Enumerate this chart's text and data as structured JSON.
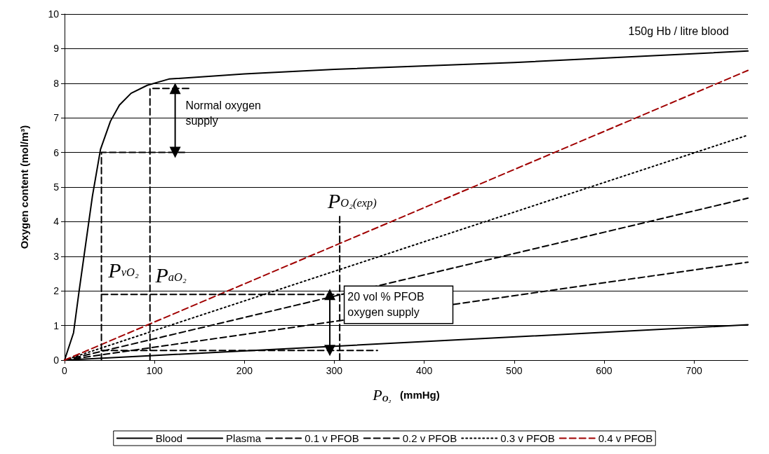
{
  "chart_data": {
    "type": "line",
    "xlabel": "P$_{O₂}$   (mmHg)",
    "ylabel": "Oxygen content (mol/m³)",
    "xlim": [
      0,
      760
    ],
    "xticks": [
      0,
      100,
      200,
      300,
      400,
      500,
      600,
      700
    ],
    "ylim": [
      0,
      10
    ],
    "yticks": [
      0,
      1,
      2,
      3,
      4,
      5,
      6,
      7,
      8,
      9,
      10
    ],
    "grid": "y",
    "legend": "bottom",
    "series": [
      {
        "name": "Blood",
        "color": "#000000",
        "line_style": "solid",
        "x": [
          0,
          10,
          16,
          27,
          31,
          40,
          51,
          61,
          74,
          92,
          116,
          200,
          300,
          500,
          760
        ],
        "values": [
          0,
          0.79,
          1.96,
          4.0,
          4.74,
          6.09,
          6.9,
          7.37,
          7.71,
          7.94,
          8.12,
          8.27,
          8.4,
          8.6,
          8.93
        ]
      },
      {
        "name": "Plasma",
        "color": "#000000",
        "line_style": "solid",
        "x": [
          0,
          300,
          760
        ],
        "values": [
          0,
          0.4,
          1.02
        ]
      },
      {
        "name": "0.1 v PFOB",
        "color": "#000000",
        "line_style": "dashed",
        "x": [
          0,
          760
        ],
        "values": [
          0,
          2.83
        ]
      },
      {
        "name": "0.2 v PFOB",
        "color": "#000000",
        "line_style": "dashed",
        "x": [
          0,
          760
        ],
        "values": [
          0,
          4.68
        ]
      },
      {
        "name": "0.3 v PFOB",
        "color": "#000000",
        "line_style": "dotted",
        "x": [
          0,
          760
        ],
        "values": [
          0,
          6.5
        ]
      },
      {
        "name": "0.4 v PFOB",
        "color": "#a00000",
        "line_style": "dashed",
        "x": [
          0,
          760
        ],
        "values": [
          0,
          8.37
        ]
      },
      {
        "color": "#000000",
        "line_style": "dashed",
        "x": [
          41,
          41,
          135
        ],
        "values": [
          0,
          6,
          6
        ]
      },
      {
        "color": "#000000",
        "line_style": "dashed",
        "x": [
          95,
          95,
          140
        ],
        "values": [
          0,
          7.85,
          7.85
        ]
      },
      {
        "color": "#000000",
        "line_style": "dashed",
        "x": [
          41,
          306
        ],
        "values": [
          1.9,
          1.9
        ]
      },
      {
        "color": "#000000",
        "line_style": "dashed",
        "x": [
          41,
          348
        ],
        "values": [
          0.28,
          0.28
        ]
      },
      {
        "color": "#000000",
        "line_style": "dashed",
        "x": [
          306,
          306
        ],
        "values": [
          0,
          4.2
        ]
      },
      {
        "color": "#000000",
        "line_style": "solid",
        "marker": "triangle",
        "x": [
          123,
          123
        ],
        "values": [
          6,
          7.85
        ]
      },
      {
        "color": "#000000",
        "line_style": "solid",
        "marker": "triangle",
        "x": [
          295,
          295
        ],
        "values": [
          0.28,
          1.9
        ]
      }
    ],
    "annotations": [
      "150g Hb / litre blood",
      "Normal oxygen\nsupply",
      "20 vol % PFOB\noxygen supply",
      "P$_{vO₂}$",
      "P$_{aO₂}$",
      "P$_{O₂(exp)}$"
    ]
  }
}
